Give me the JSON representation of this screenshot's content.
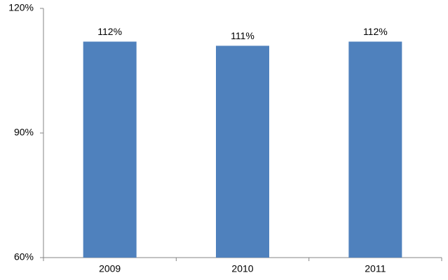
{
  "chart_data": {
    "type": "bar",
    "categories": [
      "2009",
      "2010",
      "2011"
    ],
    "values": [
      112,
      111,
      112
    ],
    "value_labels": [
      "112%",
      "111%",
      "112%"
    ],
    "color": "#4f81bd",
    "ylim": [
      60,
      120
    ],
    "yticks": [
      {
        "value": 60,
        "label": "60%"
      },
      {
        "value": 90,
        "label": "90%"
      },
      {
        "value": 120,
        "label": "120%"
      }
    ],
    "grid": false
  }
}
